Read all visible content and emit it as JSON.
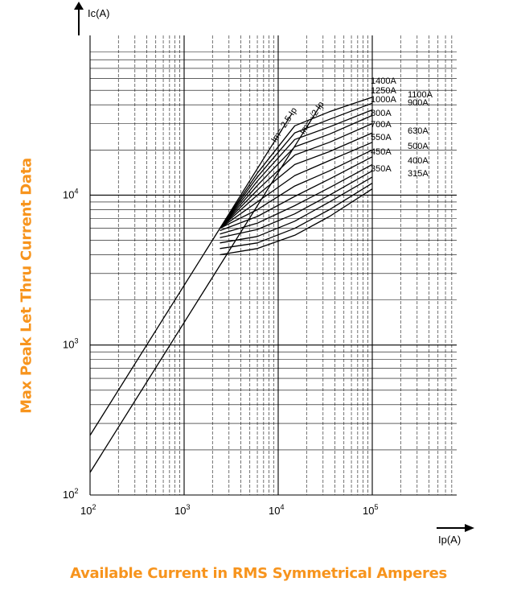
{
  "caption_x": "Available Current in RMS Symmetrical Amperes",
  "caption_y": "Max Peak Let Thru Current Data",
  "colors": {
    "caption": "#f7941d",
    "lines": "#000000"
  },
  "chart_data": {
    "type": "line",
    "xscale": "log",
    "yscale": "log",
    "xlim": [
      100,
      1000000
    ],
    "ylim": [
      100,
      100000
    ],
    "grid": true,
    "xlabel": "Ip(A)",
    "ylabel": "Ic(A)",
    "xticks": [
      {
        "value": 100,
        "label": "10",
        "exp": "2"
      },
      {
        "value": 1000,
        "label": "10",
        "exp": "3"
      },
      {
        "value": 10000,
        "label": "10",
        "exp": "4"
      },
      {
        "value": 100000,
        "label": "10",
        "exp": "5"
      }
    ],
    "yticks": [
      {
        "value": 100,
        "label": "10",
        "exp": "2"
      },
      {
        "value": 1000,
        "label": "10",
        "exp": "3"
      },
      {
        "value": 10000,
        "label": "10",
        "exp": "4"
      }
    ],
    "reference_lines": [
      {
        "label": "Im= 2.5 Ip",
        "factor": 2.5,
        "x_end": 14000
      },
      {
        "label": "Im= √2 Ip",
        "factor": 1.414,
        "x_end": 28000
      }
    ],
    "series": [
      {
        "name": "1400A",
        "points": [
          [
            2400,
            6000
          ],
          [
            6000,
            14000
          ],
          [
            15000,
            29000
          ],
          [
            35000,
            36000
          ],
          [
            100000,
            45000
          ]
        ]
      },
      {
        "name": "1250A",
        "points": [
          [
            2400,
            6000
          ],
          [
            6000,
            13200
          ],
          [
            15000,
            26000
          ],
          [
            35000,
            32000
          ],
          [
            100000,
            41000
          ]
        ]
      },
      {
        "name": "1100A",
        "points": [
          [
            2400,
            6000
          ],
          [
            6000,
            12400
          ],
          [
            15000,
            23500
          ],
          [
            35000,
            28500
          ],
          [
            100000,
            37000
          ]
        ]
      },
      {
        "name": "1000A",
        "points": [
          [
            2400,
            6000
          ],
          [
            6000,
            11600
          ],
          [
            15000,
            21000
          ],
          [
            35000,
            25500
          ],
          [
            100000,
            34000
          ]
        ]
      },
      {
        "name": "900A",
        "points": [
          [
            2400,
            6000
          ],
          [
            6000,
            10800
          ],
          [
            15000,
            18500
          ],
          [
            35000,
            22500
          ],
          [
            100000,
            30000
          ]
        ]
      },
      {
        "name": "800A",
        "points": [
          [
            2400,
            6000
          ],
          [
            6000,
            10000
          ],
          [
            15000,
            16000
          ],
          [
            35000,
            19500
          ],
          [
            100000,
            26000
          ]
        ]
      },
      {
        "name": "700A",
        "points": [
          [
            2400,
            6000
          ],
          [
            6000,
            9000
          ],
          [
            15000,
            13500
          ],
          [
            35000,
            17000
          ],
          [
            100000,
            22500
          ]
        ]
      },
      {
        "name": "630A",
        "points": [
          [
            2400,
            6000
          ],
          [
            6000,
            8000
          ],
          [
            15000,
            11500
          ],
          [
            35000,
            14500
          ],
          [
            100000,
            20000
          ]
        ]
      },
      {
        "name": "550A",
        "points": [
          [
            2400,
            5800
          ],
          [
            6000,
            7200
          ],
          [
            15000,
            9800
          ],
          [
            35000,
            12800
          ],
          [
            100000,
            18000
          ]
        ]
      },
      {
        "name": "500A",
        "points": [
          [
            2400,
            5500
          ],
          [
            6000,
            6500
          ],
          [
            15000,
            8500
          ],
          [
            35000,
            11200
          ],
          [
            100000,
            16000
          ]
        ]
      },
      {
        "name": "450A",
        "points": [
          [
            2400,
            5200
          ],
          [
            6000,
            5900
          ],
          [
            15000,
            7500
          ],
          [
            35000,
            10000
          ],
          [
            100000,
            14500
          ]
        ]
      },
      {
        "name": "400A",
        "points": [
          [
            2400,
            4800
          ],
          [
            6000,
            5300
          ],
          [
            15000,
            6700
          ],
          [
            35000,
            9000
          ],
          [
            100000,
            13200
          ]
        ]
      },
      {
        "name": "350A",
        "points": [
          [
            2400,
            4400
          ],
          [
            6000,
            4800
          ],
          [
            15000,
            6000
          ],
          [
            35000,
            8000
          ],
          [
            100000,
            12000
          ]
        ]
      },
      {
        "name": "315A",
        "points": [
          [
            2400,
            4000
          ],
          [
            6000,
            4400
          ],
          [
            15000,
            5400
          ],
          [
            35000,
            7200
          ],
          [
            100000,
            11000
          ]
        ]
      }
    ],
    "labels_left": [
      "1400A",
      "1250A",
      "1000A",
      "800A",
      "700A",
      "550A",
      "450A",
      "350A"
    ],
    "labels_right": [
      "1100A",
      "900A",
      "630A",
      "500A",
      "400A",
      "315A"
    ]
  }
}
